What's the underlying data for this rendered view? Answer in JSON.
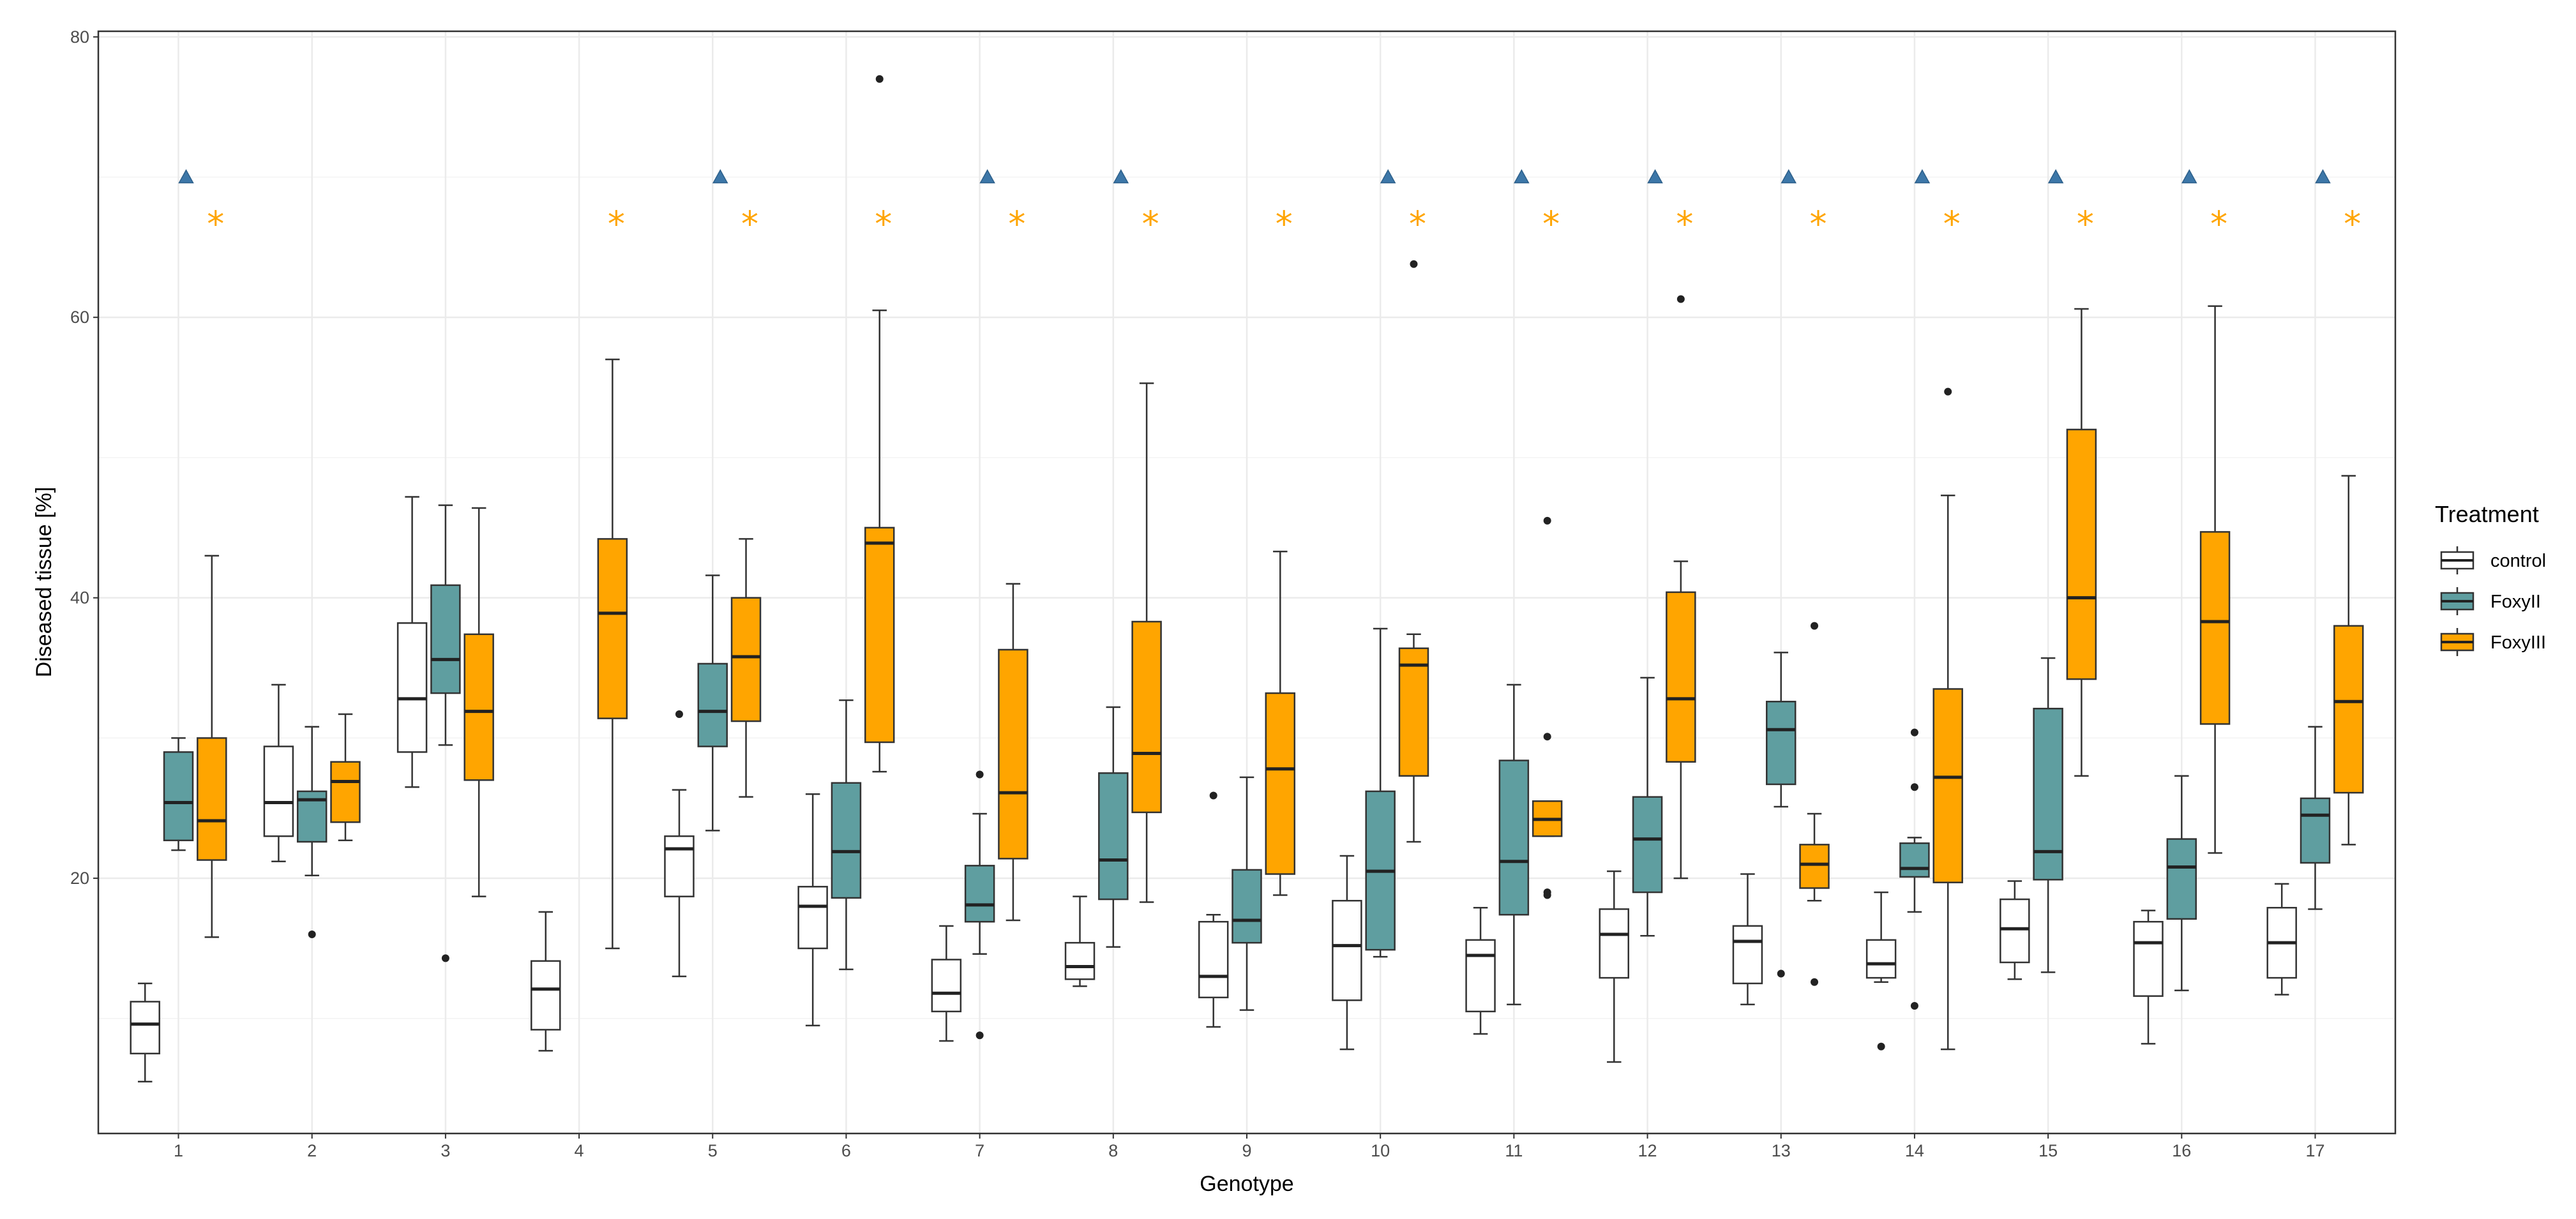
{
  "chart_data": {
    "type": "boxplot",
    "xlabel": "Genotype",
    "ylabel": "Diseased tissue [%]",
    "ylim": [
      1.8,
      80.4
    ],
    "xlim": [
      0.4,
      17.6
    ],
    "yticks": [
      20,
      40,
      60,
      80
    ],
    "categories": [
      "1",
      "2",
      "3",
      "4",
      "5",
      "6",
      "7",
      "8",
      "9",
      "10",
      "11",
      "12",
      "13",
      "14",
      "15",
      "16",
      "17"
    ],
    "grid": true,
    "legend": {
      "title": "Treatment",
      "placement": "right"
    },
    "series": [
      {
        "name": "control",
        "color": "#ffffff",
        "boxes": [
          {
            "min": 5.5,
            "q1": 7.5,
            "med": 9.6,
            "q3": 11.2,
            "max": 12.5,
            "outliers": []
          },
          {
            "min": 21.2,
            "q1": 23,
            "med": 25.4,
            "q3": 29.4,
            "max": 33.8,
            "outliers": []
          },
          {
            "min": 26.5,
            "q1": 29,
            "med": 32.8,
            "q3": 38.2,
            "max": 47.2,
            "outliers": []
          },
          {
            "min": 7.7,
            "q1": 9.2,
            "med": 12.1,
            "q3": 14.1,
            "max": 17.6,
            "outliers": []
          },
          {
            "min": 13,
            "q1": 18.7,
            "med": 22.1,
            "q3": 23,
            "max": 26.3,
            "outliers": [
              31.7
            ]
          },
          {
            "min": 9.5,
            "q1": 15,
            "med": 18,
            "q3": 19.4,
            "max": 26,
            "outliers": []
          },
          {
            "min": 8.4,
            "q1": 10.5,
            "med": 11.8,
            "q3": 14.2,
            "max": 16.6,
            "outliers": []
          },
          {
            "min": 12.3,
            "q1": 12.8,
            "med": 13.7,
            "q3": 15.4,
            "max": 18.7,
            "outliers": []
          },
          {
            "min": 9.4,
            "q1": 11.5,
            "med": 13,
            "q3": 16.9,
            "max": 17.4,
            "outliers": [
              25.9
            ]
          },
          {
            "min": 7.8,
            "q1": 11.3,
            "med": 15.2,
            "q3": 18.4,
            "max": 21.6,
            "outliers": []
          },
          {
            "min": 8.9,
            "q1": 10.5,
            "med": 14.5,
            "q3": 15.6,
            "max": 17.9,
            "outliers": []
          },
          {
            "min": 6.9,
            "q1": 12.9,
            "med": 16,
            "q3": 17.8,
            "max": 20.5,
            "outliers": []
          },
          {
            "min": 11,
            "q1": 12.5,
            "med": 15.5,
            "q3": 16.6,
            "max": 20.3,
            "outliers": []
          },
          {
            "min": 12.6,
            "q1": 12.9,
            "med": 13.9,
            "q3": 15.6,
            "max": 19,
            "outliers": [
              8
            ]
          },
          {
            "min": 12.8,
            "q1": 14,
            "med": 16.4,
            "q3": 18.5,
            "max": 19.8,
            "outliers": []
          },
          {
            "min": 8.2,
            "q1": 11.6,
            "med": 15.4,
            "q3": 16.9,
            "max": 17.7,
            "outliers": []
          },
          {
            "min": 11.7,
            "q1": 12.9,
            "med": 15.4,
            "q3": 17.9,
            "max": 19.6,
            "outliers": []
          }
        ]
      },
      {
        "name": "FoxyII",
        "color": "#5f9ea0",
        "boxes": [
          {
            "min": 22,
            "q1": 22.7,
            "med": 25.4,
            "q3": 29,
            "max": 30,
            "outliers": []
          },
          {
            "min": 20.2,
            "q1": 22.6,
            "med": 25.6,
            "q3": 26.2,
            "max": 30.8,
            "outliers": [
              16
            ]
          },
          {
            "min": 29.5,
            "q1": 33.2,
            "med": 35.6,
            "q3": 40.9,
            "max": 46.6,
            "outliers": [
              14.3
            ]
          },
          null,
          {
            "min": 23.4,
            "q1": 29.4,
            "med": 31.9,
            "q3": 35.3,
            "max": 41.6,
            "outliers": []
          },
          {
            "min": 13.5,
            "q1": 18.6,
            "med": 21.9,
            "q3": 26.8,
            "max": 32.7,
            "outliers": []
          },
          {
            "min": 14.6,
            "q1": 16.9,
            "med": 18.1,
            "q3": 20.9,
            "max": 24.6,
            "outliers": [
              27.4,
              8.8
            ]
          },
          {
            "min": 15.1,
            "q1": 18.5,
            "med": 21.3,
            "q3": 27.5,
            "max": 32.2,
            "outliers": []
          },
          {
            "min": 10.6,
            "q1": 15.4,
            "med": 17,
            "q3": 20.6,
            "max": 27.2,
            "outliers": []
          },
          {
            "min": 14.4,
            "q1": 14.9,
            "med": 20.5,
            "q3": 26.2,
            "max": 37.8,
            "outliers": []
          },
          {
            "min": 11,
            "q1": 17.4,
            "med": 21.2,
            "q3": 28.4,
            "max": 33.8,
            "outliers": []
          },
          {
            "min": 15.9,
            "q1": 19,
            "med": 22.8,
            "q3": 25.8,
            "max": 34.3,
            "outliers": []
          },
          {
            "min": 25.1,
            "q1": 26.7,
            "med": 30.6,
            "q3": 32.6,
            "max": 36.1,
            "outliers": [
              13.2
            ]
          },
          {
            "min": 17.6,
            "q1": 20.1,
            "med": 20.7,
            "q3": 22.5,
            "max": 22.9,
            "outliers": [
              30.4,
              26.5,
              10.9
            ]
          },
          {
            "min": 13.3,
            "q1": 19.9,
            "med": 21.9,
            "q3": 32.1,
            "max": 35.7,
            "outliers": []
          },
          {
            "min": 12,
            "q1": 17.1,
            "med": 20.8,
            "q3": 22.8,
            "max": 27.3,
            "outliers": []
          },
          {
            "min": 17.8,
            "q1": 21.1,
            "med": 24.5,
            "q3": 25.7,
            "max": 30.8,
            "outliers": []
          }
        ]
      },
      {
        "name": "FoxyIII",
        "color": "#ffa500",
        "boxes": [
          {
            "min": 15.8,
            "q1": 21.3,
            "med": 24.1,
            "q3": 30,
            "max": 43,
            "outliers": []
          },
          {
            "min": 22.7,
            "q1": 24,
            "med": 26.9,
            "q3": 28.3,
            "max": 31.7,
            "outliers": []
          },
          {
            "min": 18.7,
            "q1": 27,
            "med": 31.9,
            "q3": 37.4,
            "max": 46.4,
            "outliers": []
          },
          {
            "min": 15,
            "q1": 31.4,
            "med": 38.9,
            "q3": 44.2,
            "max": 57,
            "outliers": []
          },
          {
            "min": 25.8,
            "q1": 31.2,
            "med": 35.8,
            "q3": 40,
            "max": 44.2,
            "outliers": []
          },
          {
            "min": 27.6,
            "q1": 29.7,
            "med": 43.9,
            "q3": 45,
            "max": 60.5,
            "outliers": [
              77
            ]
          },
          {
            "min": 17,
            "q1": 21.4,
            "med": 26.1,
            "q3": 36.3,
            "max": 41,
            "outliers": []
          },
          {
            "min": 18.3,
            "q1": 24.7,
            "med": 28.9,
            "q3": 38.3,
            "max": 55.3,
            "outliers": []
          },
          {
            "min": 18.8,
            "q1": 20.3,
            "med": 27.8,
            "q3": 33.2,
            "max": 43.3,
            "outliers": []
          },
          {
            "min": 22.6,
            "q1": 27.3,
            "med": 35.2,
            "q3": 36.4,
            "max": 37.4,
            "outliers": [
              63.8
            ]
          },
          {
            "min": 23,
            "q1": 23,
            "med": 24.2,
            "q3": 25.5,
            "max": 25.5,
            "outliers": [
              45.5,
              30.1,
              19,
              18.8
            ]
          },
          {
            "min": 20,
            "q1": 28.3,
            "med": 32.8,
            "q3": 40.4,
            "max": 42.6,
            "outliers": [
              61.3
            ]
          },
          {
            "min": 18.4,
            "q1": 19.3,
            "med": 21,
            "q3": 22.4,
            "max": 24.6,
            "outliers": [
              38,
              12.6
            ]
          },
          {
            "min": 7.8,
            "q1": 19.7,
            "med": 27.2,
            "q3": 33.5,
            "max": 47.3,
            "outliers": [
              54.7
            ]
          },
          {
            "min": 27.3,
            "q1": 34.2,
            "med": 40,
            "q3": 52,
            "max": 60.6,
            "outliers": []
          },
          {
            "min": 21.8,
            "q1": 31,
            "med": 38.3,
            "q3": 44.7,
            "max": 60.8,
            "outliers": []
          },
          {
            "min": 22.4,
            "q1": 26.1,
            "med": 32.6,
            "q3": 38,
            "max": 48.7,
            "outliers": []
          }
        ]
      }
    ],
    "annotations": {
      "triangle": {
        "series": "FoxyII",
        "y": 70,
        "color": "#3d77a8",
        "genotypes": [
          "1",
          "5",
          "7",
          "8",
          "10",
          "11",
          "12",
          "13",
          "14",
          "15",
          "16",
          "17"
        ]
      },
      "asterisk": {
        "series": "FoxyIII",
        "y": 67,
        "symbol": "*",
        "color": "#ffa500",
        "genotypes": [
          "1",
          "4",
          "5",
          "6",
          "7",
          "8",
          "9",
          "10",
          "11",
          "12",
          "13",
          "14",
          "15",
          "16",
          "17"
        ]
      }
    }
  }
}
